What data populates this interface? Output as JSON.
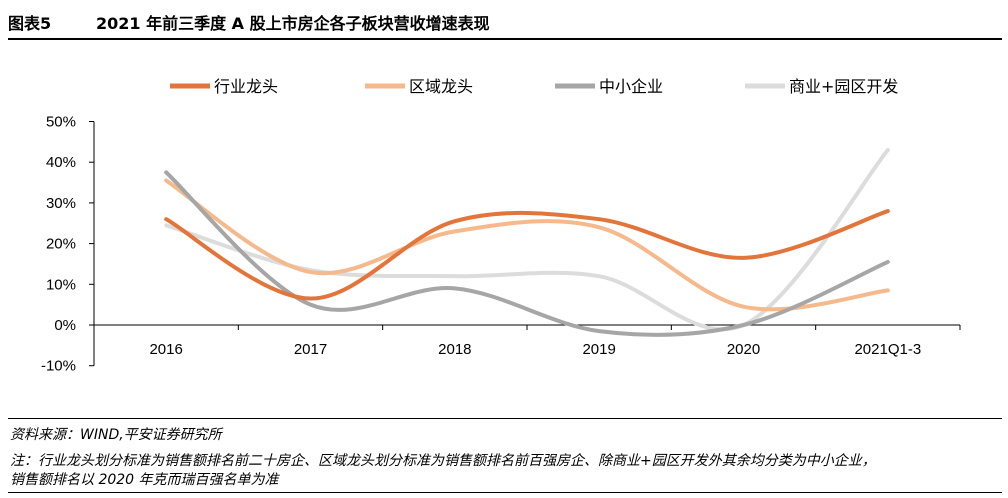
{
  "figure": {
    "number": "图表5",
    "title": "2021 年前三季度 A 股上市房企各子板块营收增速表现"
  },
  "source": "资料来源：WIND,平安证券研究所",
  "note_line1": "注：行业龙头划分标准为销售额排名前二十房企、区域龙头划分标准为销售额排名前百强房企、除商业+园区开发外其余均分类为中小企业，",
  "note_line2": "销售额排名以 2020 年克而瑞百强名单为准",
  "chart_data": {
    "type": "line",
    "smooth": true,
    "categories": [
      "2016",
      "2017",
      "2018",
      "2019",
      "2020",
      "2021Q1-3"
    ],
    "yticks": [
      "50%",
      "40%",
      "30%",
      "20%",
      "10%",
      "0%",
      "-10%"
    ],
    "ylim": [
      -10,
      50
    ],
    "y_unit": "%",
    "grid": false,
    "legend_position": "top",
    "series": [
      {
        "name": "行业龙头",
        "color": "#E4753A",
        "values": [
          26,
          6.5,
          25.5,
          26,
          16.5,
          28
        ]
      },
      {
        "name": "区域龙头",
        "color": "#F5B98C",
        "values": [
          35.5,
          13,
          23,
          24,
          4.5,
          8.5
        ]
      },
      {
        "name": "中小企业",
        "color": "#A6A6A6",
        "values": [
          37.5,
          5,
          9,
          -1.5,
          0,
          15.5
        ]
      },
      {
        "name": "商业+园区开发",
        "color": "#DCDCDC",
        "values": [
          24.5,
          13.5,
          12,
          12,
          0,
          43
        ]
      }
    ]
  }
}
